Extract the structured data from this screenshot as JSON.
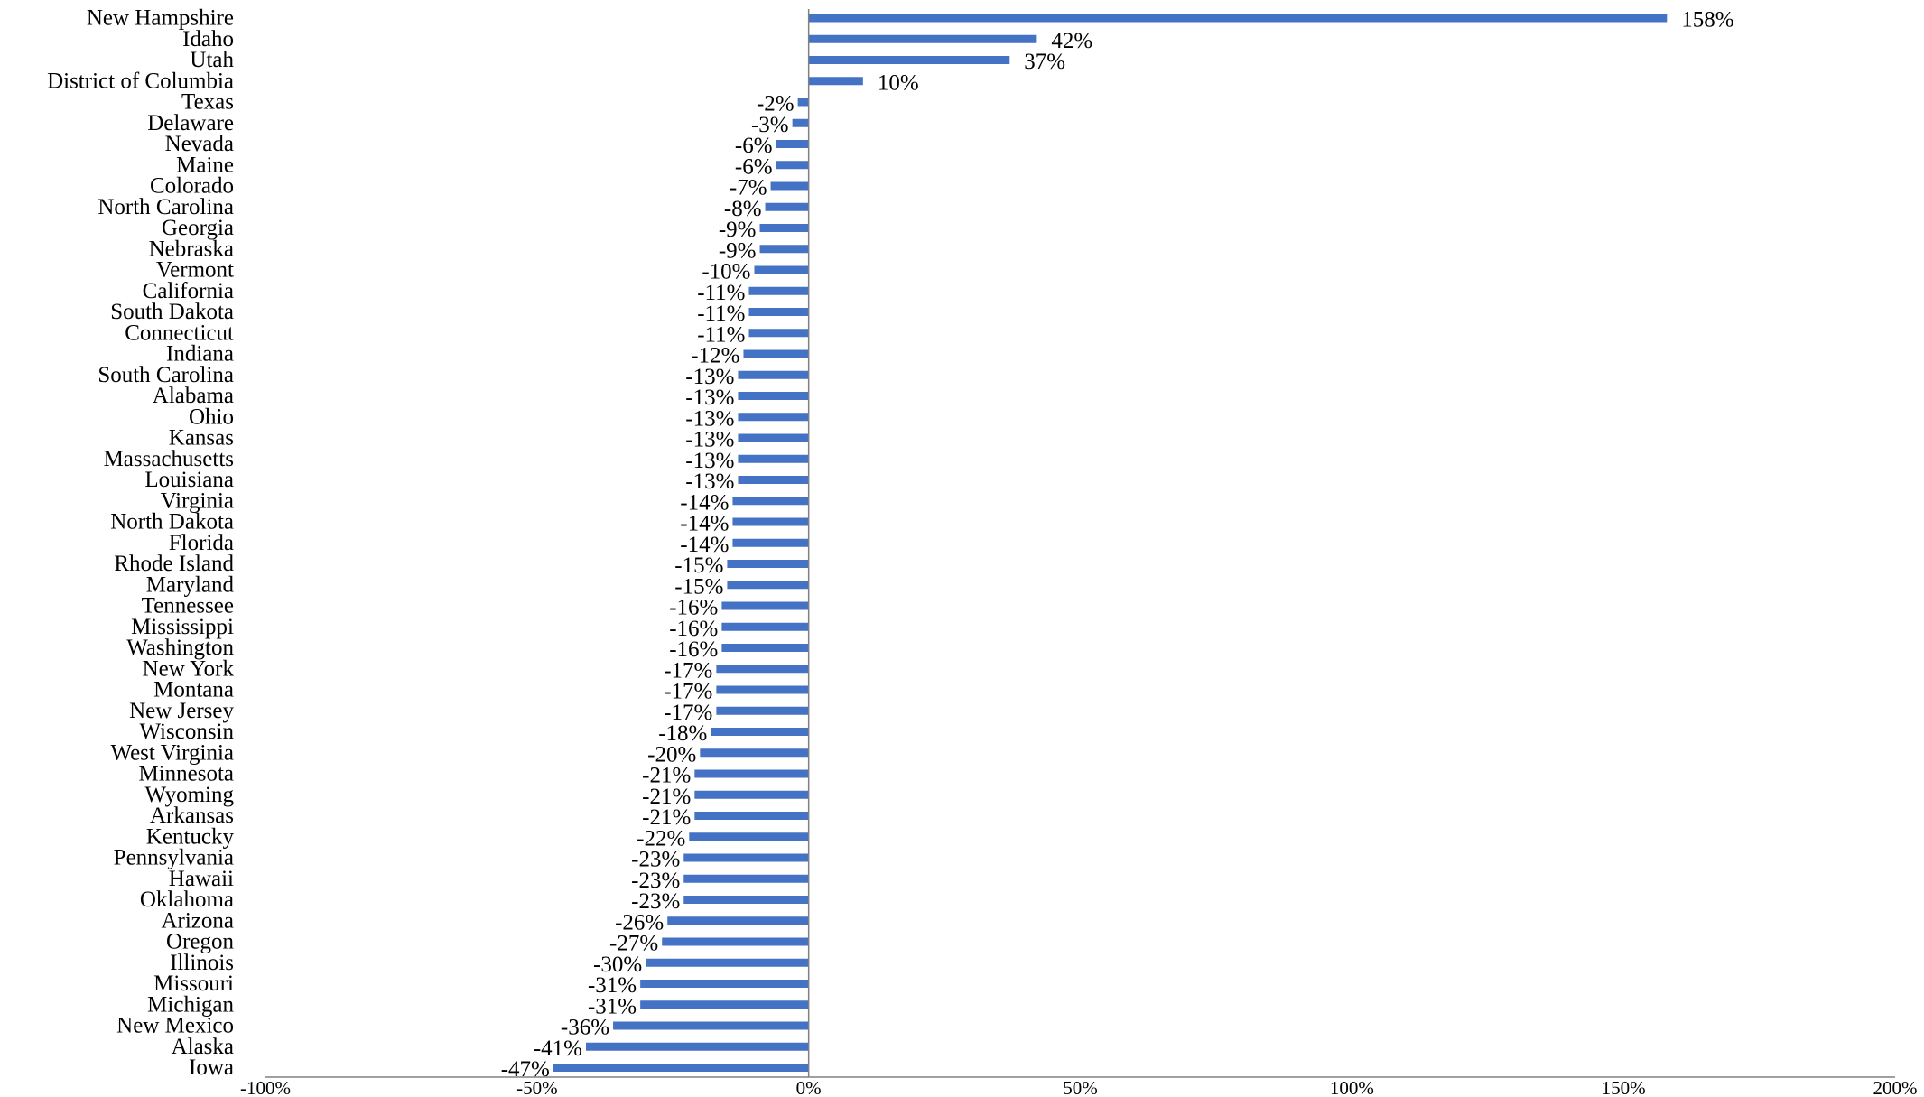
{
  "chart_data": {
    "type": "bar",
    "orientation": "horizontal",
    "title": "",
    "xlabel": "",
    "ylabel": "",
    "xlim": [
      -100,
      200
    ],
    "x_ticks": [
      -100,
      -50,
      0,
      50,
      100,
      150,
      200
    ],
    "x_tick_labels": [
      "-100%",
      "-50%",
      "0%",
      "50%",
      "100%",
      "150%",
      "200%"
    ],
    "grid": false,
    "legend": "none",
    "bar_color": "#4472C4",
    "categories": [
      "New Hampshire",
      "Idaho",
      "Utah",
      "District of Columbia",
      "Texas",
      "Delaware",
      "Nevada",
      "Maine",
      "Colorado",
      "North Carolina",
      "Georgia",
      "Nebraska",
      "Vermont",
      "California",
      "South Dakota",
      "Connecticut",
      "Indiana",
      "South Carolina",
      "Alabama",
      "Ohio",
      "Kansas",
      "Massachusetts",
      "Louisiana",
      "Virginia",
      "North Dakota",
      "Florida",
      "Rhode Island",
      "Maryland",
      "Tennessee",
      "Mississippi",
      "Washington",
      "New York",
      "Montana",
      "New Jersey",
      "Wisconsin",
      "West Virginia",
      "Minnesota",
      "Wyoming",
      "Arkansas",
      "Kentucky",
      "Pennsylvania",
      "Hawaii",
      "Oklahoma",
      "Arizona",
      "Oregon",
      "Illinois",
      "Missouri",
      "Michigan",
      "New Mexico",
      "Alaska",
      "Iowa"
    ],
    "values": [
      158,
      42,
      37,
      10,
      -2,
      -3,
      -6,
      -6,
      -7,
      -8,
      -9,
      -9,
      -10,
      -11,
      -11,
      -11,
      -12,
      -13,
      -13,
      -13,
      -13,
      -13,
      -13,
      -14,
      -14,
      -14,
      -15,
      -15,
      -16,
      -16,
      -16,
      -17,
      -17,
      -17,
      -18,
      -20,
      -21,
      -21,
      -21,
      -22,
      -23,
      -23,
      -23,
      -26,
      -27,
      -30,
      -31,
      -31,
      -36,
      -41,
      -47
    ],
    "value_labels": [
      "158%",
      "42%",
      "37%",
      "10%",
      "-2%",
      "-3%",
      "-6%",
      "-6%",
      "-7%",
      "-8%",
      "-9%",
      "-9%",
      "-10%",
      "-11%",
      "-11%",
      "-11%",
      "-12%",
      "-13%",
      "-13%",
      "-13%",
      "-13%",
      "-13%",
      "-13%",
      "-14%",
      "-14%",
      "-14%",
      "-15%",
      "-15%",
      "-16%",
      "-16%",
      "-16%",
      "-17%",
      "-17%",
      "-17%",
      "-18%",
      "-20%",
      "-21%",
      "-21%",
      "-21%",
      "-22%",
      "-23%",
      "-23%",
      "-23%",
      "-26%",
      "-27%",
      "-30%",
      "-31%",
      "-31%",
      "-36%",
      "-41%",
      "-47%"
    ]
  }
}
